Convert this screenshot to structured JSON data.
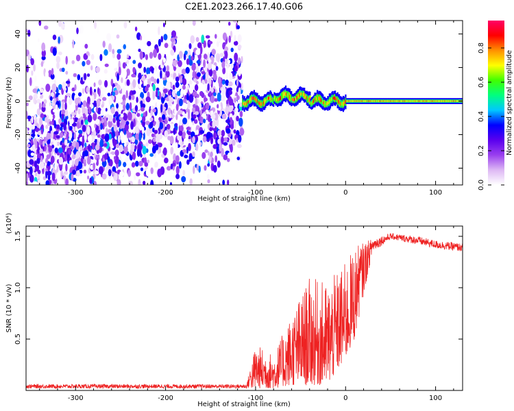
{
  "title": "C2E1.2023.266.17.40.G06",
  "chart_data": [
    {
      "type": "heatmap",
      "title": "",
      "xlabel": "Height of straight line (km)",
      "ylabel": "Frequency (Hz)",
      "xlim": [
        -355,
        130
      ],
      "ylim": [
        -50,
        48
      ],
      "x_ticks": [
        -300,
        -200,
        -100,
        0,
        100
      ],
      "y_ticks": [
        -40,
        -20,
        0,
        20,
        40
      ],
      "colorbar": {
        "label": "Normalized spectral amplitude",
        "range": [
          0,
          0.96
        ],
        "ticks": [
          0.0,
          0.2,
          0.4,
          0.6,
          0.8
        ],
        "tick_labels": [
          "0.0",
          "0.2",
          "0.4",
          "0.6",
          "0.8"
        ],
        "colormap": [
          "#ffffff",
          "#ddb8f4",
          "#9a40ee",
          "#5a00ee",
          "#0000ff",
          "#00c8ff",
          "#00ff80",
          "#40ff00",
          "#ffff00",
          "#ff9000",
          "#ff0000",
          "#ff0066"
        ]
      },
      "features": {
        "scatter_region_x": [
          -355,
          -115
        ],
        "narrow_band_x": [
          -115,
          130
        ],
        "narrow_band_center_hz": 0
      }
    },
    {
      "type": "line",
      "title": "",
      "xlabel": "Height of straight line (km)",
      "ylabel": "SNR (10 * v/v)",
      "y_multiplier_label": "(x10⁴)",
      "xlim": [
        -355,
        130
      ],
      "ylim": [
        0,
        1.6
      ],
      "x_ticks": [
        -300,
        -200,
        -100,
        0,
        100
      ],
      "y_ticks": [
        0.5,
        1.0,
        1.5
      ],
      "y_tick_labels": [
        "0.5",
        "1.0",
        "1.5"
      ],
      "line_color": "#ee2222",
      "envelope": [
        {
          "x": -355,
          "low": 0.02,
          "high": 0.06
        },
        {
          "x": -110,
          "low": 0.02,
          "high": 0.06
        },
        {
          "x": -100,
          "low": 0.02,
          "high": 0.45
        },
        {
          "x": -80,
          "low": 0.02,
          "high": 0.35
        },
        {
          "x": -60,
          "low": 0.05,
          "high": 0.75
        },
        {
          "x": -40,
          "low": 0.05,
          "high": 1.1
        },
        {
          "x": -20,
          "low": 0.05,
          "high": 1.05
        },
        {
          "x": 0,
          "low": 0.3,
          "high": 1.25
        },
        {
          "x": 10,
          "low": 0.5,
          "high": 1.4
        },
        {
          "x": 30,
          "low": 1.35,
          "high": 1.48
        },
        {
          "x": 50,
          "low": 1.47,
          "high": 1.53
        },
        {
          "x": 80,
          "low": 1.42,
          "high": 1.5
        },
        {
          "x": 100,
          "low": 1.38,
          "high": 1.46
        },
        {
          "x": 130,
          "low": 1.35,
          "high": 1.43
        }
      ]
    }
  ]
}
